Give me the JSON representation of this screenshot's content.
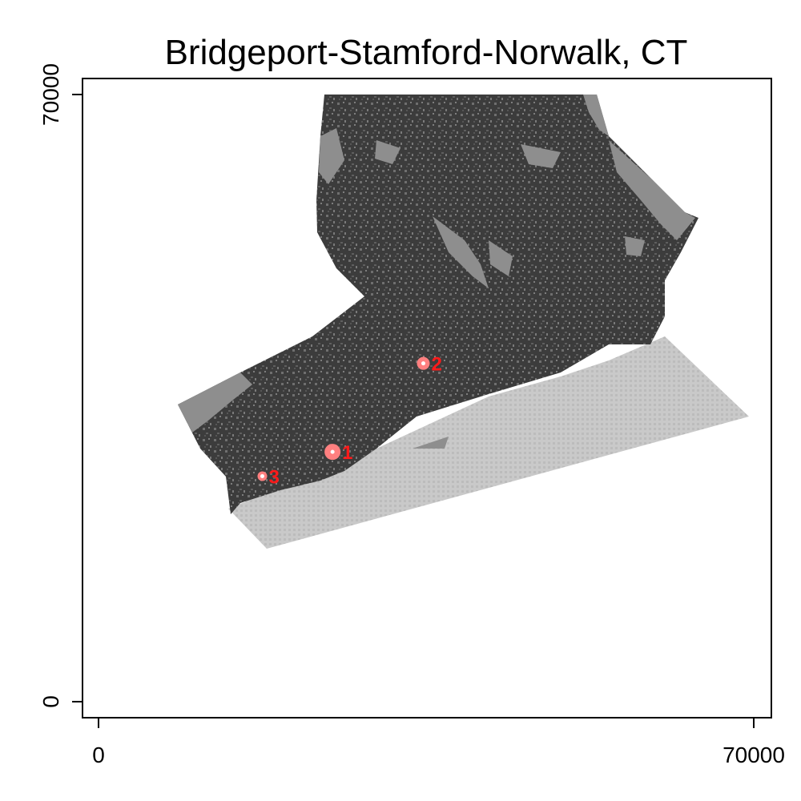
{
  "title": "Bridgeport-Stamford-Norwalk, CT",
  "x_axis": {
    "min": 0,
    "max": 70000,
    "tick_labels": [
      "0",
      "70000"
    ]
  },
  "y_axis": {
    "min": 0,
    "max": 70000,
    "tick_labels": [
      "0",
      "70000"
    ]
  },
  "colors": {
    "developed": "#3c3c3c",
    "open_land": "#8f8f8f",
    "water": "#c8c8c8",
    "marker": "#ff8080",
    "marker_label": "#ff1a1a"
  },
  "markers": [
    {
      "label": "1",
      "x": 25000,
      "y": 28800,
      "size": "large"
    },
    {
      "label": "2",
      "x": 34700,
      "y": 39000,
      "size": "medium"
    },
    {
      "label": "3",
      "x": 17500,
      "y": 26000,
      "size": "small"
    }
  ]
}
